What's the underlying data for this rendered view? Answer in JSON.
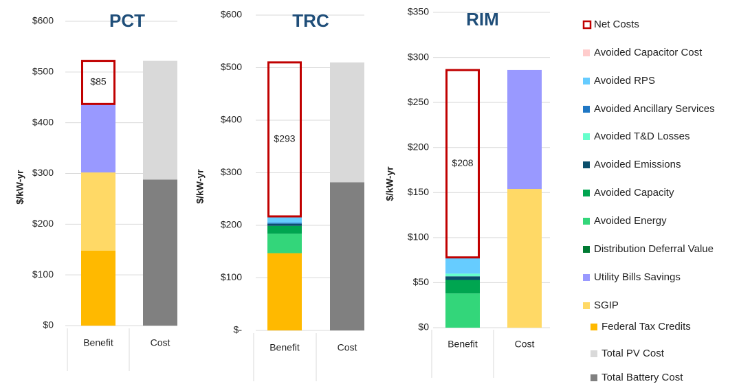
{
  "legend": [
    {
      "name": "Net Costs",
      "color": "#c00000"
    },
    {
      "name": "Avoided Capacitor Cost",
      "color": "#ffcccc"
    },
    {
      "name": "Avoided RPS",
      "color": "#66ccff"
    },
    {
      "name": "Avoided Ancillary Services",
      "color": "#1f77c4"
    },
    {
      "name": "Avoided T&D Losses",
      "color": "#66ffcc"
    },
    {
      "name": "Avoided Emissions",
      "color": "#0b4f6c"
    },
    {
      "name": "Avoided Capacity",
      "color": "#00a550"
    },
    {
      "name": "Avoided Energy",
      "color": "#33d67a"
    },
    {
      "name": "Distribution Deferral Value",
      "color": "#007a33"
    },
    {
      "name": "Utility Bills Savings",
      "color": "#9999ff"
    },
    {
      "name": "SGIP",
      "color": "#ffd966"
    },
    {
      "name": "Federal Tax Credits",
      "color": "#ffb900"
    },
    {
      "name": "Total PV Cost",
      "color": "#d9d9d9"
    },
    {
      "name": "Total Battery Cost",
      "color": "#808080"
    }
  ],
  "chart_data": [
    {
      "type": "bar",
      "stacked": true,
      "title": "PCT",
      "ylabel": "$/kW-yr",
      "categories": [
        "Benefit",
        "Cost"
      ],
      "ylim": [
        0,
        600
      ],
      "yticks": [
        {
          "value": 0,
          "label": "$0"
        },
        {
          "value": 100,
          "label": "$100"
        },
        {
          "value": 200,
          "label": "$200"
        },
        {
          "value": 300,
          "label": "$300"
        },
        {
          "value": 400,
          "label": "$400"
        },
        {
          "value": 500,
          "label": "$500"
        },
        {
          "value": 600,
          "label": "$600"
        }
      ],
      "grid": true,
      "series": [
        {
          "values": [
            85,
            null
          ],
          "value_labels": [
            "$85",
            null
          ]
        },
        {
          "values": [
            null,
            null
          ]
        },
        {
          "values": [
            null,
            null
          ]
        },
        {
          "values": [
            null,
            null
          ]
        },
        {
          "values": [
            null,
            null
          ]
        },
        {
          "values": [
            null,
            null
          ]
        },
        {
          "values": [
            null,
            null
          ]
        },
        {
          "values": [
            null,
            null
          ]
        },
        {
          "values": [
            null,
            null
          ]
        },
        {
          "values": [
            135,
            null
          ]
        },
        {
          "values": [
            154,
            null
          ]
        },
        {
          "values": [
            148,
            null
          ]
        },
        {
          "values": [
            null,
            234
          ]
        },
        {
          "values": [
            null,
            288
          ]
        }
      ]
    },
    {
      "type": "bar",
      "stacked": true,
      "title": "TRC",
      "ylabel": "$/kW-yr",
      "categories": [
        "Benefit",
        "Cost"
      ],
      "ylim": [
        0,
        600
      ],
      "yticks": [
        {
          "value": 0,
          "label": "$-"
        },
        {
          "value": 100,
          "label": "$100"
        },
        {
          "value": 200,
          "label": "$200"
        },
        {
          "value": 300,
          "label": "$300"
        },
        {
          "value": 400,
          "label": "$400"
        },
        {
          "value": 500,
          "label": "$500"
        },
        {
          "value": 600,
          "label": "$600"
        }
      ],
      "grid": true,
      "series": [
        {
          "values": [
            293,
            null
          ],
          "value_labels": [
            "$293",
            null
          ]
        },
        {
          "values": [
            null,
            null
          ]
        },
        {
          "values": [
            12,
            null
          ]
        },
        {
          "values": [
            2,
            null
          ]
        },
        {
          "values": [
            null,
            null
          ]
        },
        {
          "values": [
            4,
            null
          ]
        },
        {
          "values": [
            15,
            null
          ]
        },
        {
          "values": [
            37,
            null
          ]
        },
        {
          "values": [
            null,
            null
          ]
        },
        {
          "values": [
            null,
            null
          ]
        },
        {
          "values": [
            null,
            null
          ]
        },
        {
          "values": [
            147,
            null
          ]
        },
        {
          "values": [
            null,
            228
          ]
        },
        {
          "values": [
            null,
            282
          ]
        }
      ]
    },
    {
      "type": "bar",
      "stacked": true,
      "title": "RIM",
      "ylabel": "$/kW-yr",
      "categories": [
        "Benefit",
        "Cost"
      ],
      "ylim": [
        0,
        350
      ],
      "yticks": [
        {
          "value": 0,
          "label": "$0"
        },
        {
          "value": 50,
          "label": "$50"
        },
        {
          "value": 100,
          "label": "$100"
        },
        {
          "value": 150,
          "label": "$150"
        },
        {
          "value": 200,
          "label": "$200"
        },
        {
          "value": 250,
          "label": "$250"
        },
        {
          "value": 300,
          "label": "$300"
        },
        {
          "value": 350,
          "label": "$350"
        }
      ],
      "grid": true,
      "series": [
        {
          "values": [
            208,
            null
          ],
          "value_labels": [
            "$208",
            null
          ]
        },
        {
          "values": [
            null,
            null
          ]
        },
        {
          "values": [
            18,
            null
          ]
        },
        {
          "values": [
            null,
            null
          ]
        },
        {
          "values": [
            3,
            null
          ]
        },
        {
          "values": [
            4,
            null
          ]
        },
        {
          "values": [
            15,
            null
          ]
        },
        {
          "values": [
            38,
            null
          ]
        },
        {
          "values": [
            null,
            null
          ]
        },
        {
          "values": [
            null,
            132
          ]
        },
        {
          "values": [
            null,
            154
          ]
        },
        {
          "values": [
            null,
            null
          ]
        },
        {
          "values": [
            null,
            null
          ]
        },
        {
          "values": [
            null,
            null
          ]
        }
      ]
    }
  ]
}
